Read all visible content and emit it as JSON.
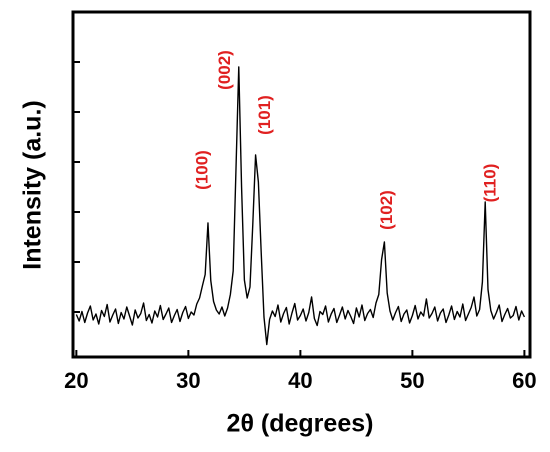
{
  "chart_data": {
    "type": "line",
    "xlabel": "2θ (degrees)",
    "ylabel": "Intensity (a.u.)",
    "color": "#000000",
    "xlim": [
      19.7,
      60.5
    ],
    "xticks": [
      20,
      30,
      40,
      50,
      60
    ],
    "ylim": [
      1,
      70
    ],
    "yticks": [
      10,
      20,
      30,
      40,
      50,
      60
    ],
    "x": [
      20,
      20.25,
      20.5,
      20.75,
      21,
      21.25,
      21.5,
      21.75,
      22,
      22.25,
      22.5,
      22.75,
      23,
      23.25,
      23.5,
      23.75,
      24,
      24.25,
      24.5,
      24.75,
      25,
      25.25,
      25.5,
      25.75,
      26,
      26.25,
      26.5,
      26.75,
      27,
      27.25,
      27.5,
      27.75,
      28,
      28.25,
      28.5,
      28.75,
      29,
      29.25,
      29.5,
      29.75,
      30,
      30.25,
      30.5,
      30.75,
      31,
      31.25,
      31.5,
      31.75,
      32,
      32.25,
      32.5,
      32.75,
      33,
      33.25,
      33.5,
      33.75,
      34,
      34.25,
      34.5,
      34.75,
      35,
      35.25,
      35.5,
      35.75,
      36,
      36.25,
      36.5,
      36.75,
      37,
      37.25,
      37.5,
      37.75,
      38,
      38.25,
      38.5,
      38.75,
      39,
      39.25,
      39.5,
      39.75,
      40,
      40.25,
      40.5,
      40.75,
      41,
      41.25,
      41.5,
      41.75,
      42,
      42.25,
      42.5,
      42.75,
      43,
      43.25,
      43.5,
      43.75,
      44,
      44.25,
      44.5,
      44.75,
      45,
      45.25,
      45.5,
      45.75,
      46,
      46.25,
      46.5,
      46.75,
      47,
      47.25,
      47.5,
      47.75,
      48,
      48.25,
      48.5,
      48.75,
      49,
      49.25,
      49.5,
      49.75,
      50,
      50.25,
      50.5,
      50.75,
      51,
      51.25,
      51.5,
      51.75,
      52,
      52.25,
      52.5,
      52.75,
      53,
      53.25,
      53.5,
      53.75,
      54,
      54.25,
      54.5,
      54.75,
      55,
      55.25,
      55.5,
      55.75,
      56,
      56.25,
      56.5,
      56.75,
      57,
      57.25,
      57.5,
      57.75,
      58,
      58.25,
      58.5,
      58.75,
      59,
      59.25,
      59.5,
      59.75,
      60
    ],
    "values": [
      9.5,
      8.2,
      10.1,
      7.9,
      9.8,
      11.2,
      8.4,
      9.6,
      7.6,
      10.3,
      9.1,
      11.5,
      8.0,
      9.4,
      10.6,
      7.7,
      9.9,
      8.6,
      11.0,
      9.2,
      7.4,
      10.4,
      8.8,
      9.7,
      11.8,
      8.3,
      9.5,
      7.8,
      10.2,
      9.0,
      11.3,
      8.5,
      9.6,
      10.8,
      7.9,
      9.3,
      10.5,
      8.1,
      9.9,
      11.1,
      8.7,
      10.0,
      9.4,
      11.6,
      12.8,
      15.2,
      17.5,
      27.8,
      16.3,
      12.1,
      10.4,
      9.6,
      11.0,
      9.2,
      10.8,
      13.5,
      18.2,
      38.5,
      59.0,
      35.0,
      16.4,
      12.8,
      15.0,
      27.5,
      41.4,
      36.0,
      22.0,
      9.0,
      3.5,
      8.5,
      10.2,
      9.1,
      11.4,
      8.0,
      9.7,
      10.9,
      7.6,
      9.8,
      11.7,
      8.4,
      9.3,
      10.6,
      8.2,
      9.9,
      13.0,
      8.7,
      7.3,
      10.1,
      9.5,
      11.2,
      8.0,
      9.6,
      10.7,
      7.9,
      9.4,
      11.0,
      8.6,
      10.3,
      9.1,
      7.7,
      10.8,
      9.0,
      11.4,
      8.3,
      9.7,
      10.5,
      8.9,
      11.8,
      13.5,
      20.5,
      24.0,
      13.8,
      10.2,
      8.4,
      9.9,
      11.1,
      8.1,
      9.6,
      10.4,
      7.8,
      9.3,
      11.3,
      8.6,
      10.0,
      9.2,
      12.6,
      8.8,
      9.7,
      11.0,
      8.2,
      9.8,
      10.6,
      7.9,
      9.4,
      11.2,
      8.5,
      10.1,
      9.0,
      11.6,
      8.3,
      9.6,
      10.9,
      13.0,
      9.2,
      10.5,
      16.0,
      32.0,
      14.5,
      10.3,
      8.6,
      9.9,
      11.4,
      8.1,
      9.5,
      10.7,
      8.8,
      9.3,
      11.1,
      8.4,
      10.2,
      9.0
    ],
    "annotations": [
      {
        "text": "(100)",
        "x": 31.3,
        "y": 38.4
      },
      {
        "text": "(002)",
        "x": 33.3,
        "y": 58.4
      },
      {
        "text": "(101)",
        "x": 36.9,
        "y": 49.4
      },
      {
        "text": "(102)",
        "x": 47.8,
        "y": 30.4
      },
      {
        "text": "(110)",
        "x": 57.0,
        "y": 35.8
      }
    ]
  }
}
